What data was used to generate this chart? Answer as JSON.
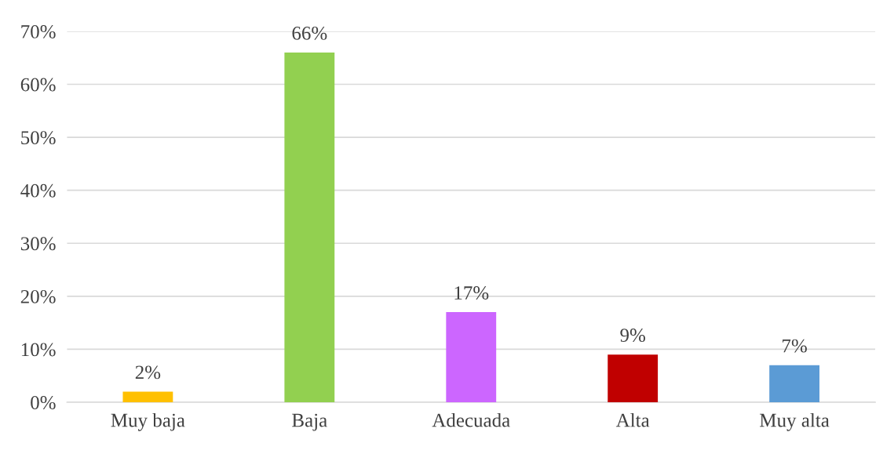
{
  "chart_data": {
    "type": "bar",
    "categories": [
      "Muy baja",
      "Baja",
      "Adecuada",
      "Alta",
      "Muy alta"
    ],
    "values": [
      2,
      66,
      17,
      9,
      7
    ],
    "colors": [
      "#ffc000",
      "#92d050",
      "#cc66ff",
      "#c00000",
      "#5b9bd5"
    ],
    "ylim": [
      0,
      70
    ],
    "yticks": [
      {
        "value": 0,
        "label": "0%"
      },
      {
        "value": 10,
        "label": "10%"
      },
      {
        "value": 20,
        "label": "20%"
      },
      {
        "value": 30,
        "label": "30%"
      },
      {
        "value": 40,
        "label": "40%"
      },
      {
        "value": 50,
        "label": "50%"
      },
      {
        "value": 60,
        "label": "60%"
      },
      {
        "value": 70,
        "label": "70%"
      }
    ],
    "value_labels": [
      "2%",
      "66%",
      "17%",
      "9%",
      "7%"
    ],
    "grid": "y"
  }
}
